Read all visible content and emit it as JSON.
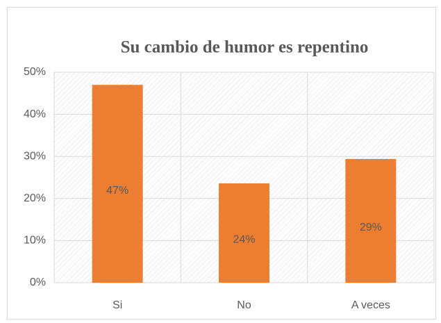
{
  "chart_data": {
    "type": "bar",
    "title": "Su cambio de humor es repentino",
    "categories": [
      "Si",
      "No",
      "A veces"
    ],
    "values": [
      47,
      23.6,
      29.4
    ],
    "value_labels": [
      "47%",
      "24%",
      "29%"
    ],
    "color": "#ed7d31",
    "ylim": [
      0,
      50
    ],
    "yticks": [
      {
        "value": 0,
        "label": "0%"
      },
      {
        "value": 10,
        "label": "10%"
      },
      {
        "value": 20,
        "label": "20%"
      },
      {
        "value": 30,
        "label": "30%"
      },
      {
        "value": 40,
        "label": "40%"
      },
      {
        "value": 50,
        "label": "50%"
      }
    ],
    "grid": true
  }
}
